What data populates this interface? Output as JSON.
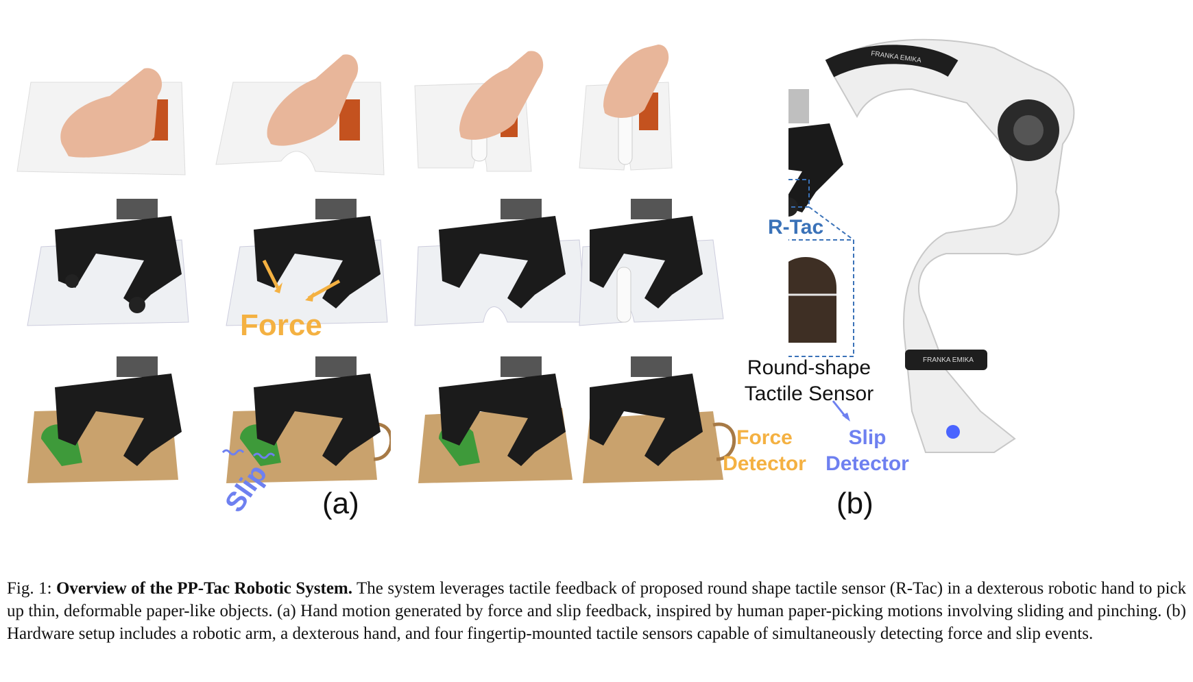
{
  "panel_a": {
    "label": "(a)",
    "force_label": "Force",
    "slip_label": "Slip"
  },
  "panel_b": {
    "label": "(b)",
    "sensor_name": "R-Tac",
    "sensor_desc_line1": "Round-shape",
    "sensor_desc_line2": "Tactile Sensor",
    "force_detector_line1": "Force",
    "force_detector_line2": "Detector",
    "slip_detector_line1": "Slip",
    "slip_detector_line2": "Detector",
    "brand_text": "FRANKA EMIKA"
  },
  "caption": {
    "prefix": "Fig. 1: ",
    "title": "Overview of the PP-Tac Robotic System.",
    "body": " The system leverages tactile feedback of proposed round shape tactile sensor (R-Tac) in a dexterous robotic hand to pick up thin, deformable paper-like objects. (a) Hand motion generated by force and slip feedback, inspired by human paper-picking motions involving sliding and pinching. (b) Hardware setup includes a robotic arm, a dexterous hand, and four fingertip-mounted tactile sensors capable of simultaneously detecting force and slip events."
  },
  "colors": {
    "force": "#f4b142",
    "slip": "#6e80f0",
    "rtac": "#3a72b8"
  }
}
